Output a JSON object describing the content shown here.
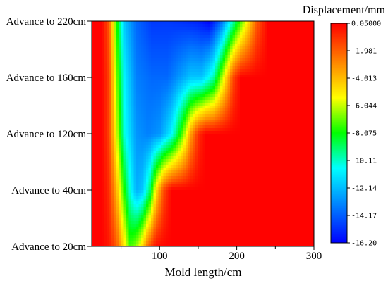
{
  "chart_data": {
    "type": "heatmap",
    "title": "",
    "xlabel": "Mold length/cm",
    "ylabel": "",
    "x_ticks": [
      100,
      200,
      300
    ],
    "xlim": [
      12,
      300
    ],
    "y_categories": [
      "Advance to 20cm",
      "Advance to 40cm",
      "Advance to 120cm",
      "Advance to 160cm",
      "Advance to 220cm"
    ],
    "colorbar": {
      "title": "Displacement/mm",
      "tick_labels": [
        "0.05000",
        "-1.981",
        "-4.013",
        "-6.044",
        "-8.075",
        "-10.11",
        "-12.14",
        "-14.17",
        "-16.20"
      ],
      "range": [
        -16.2,
        0.05
      ],
      "colormap": [
        "#0000ff",
        "#0080ff",
        "#00ffff",
        "#00ff00",
        "#ffff00",
        "#ff8000",
        "#ff0000"
      ]
    },
    "rows": [
      {
        "y": "Advance to 20cm",
        "x": [
          12,
          25,
          35,
          45,
          55,
          62,
          70,
          78,
          85,
          95,
          110,
          300
        ],
        "values": [
          0,
          0,
          -0.5,
          -2,
          -5,
          -7.5,
          -6.5,
          -4.5,
          -2,
          -0.2,
          0,
          0
        ]
      },
      {
        "y": "Advance to 40cm",
        "x": [
          12,
          25,
          35,
          45,
          55,
          62,
          70,
          78,
          88,
          95,
          105,
          115,
          300
        ],
        "values": [
          0,
          0,
          -1,
          -4,
          -8,
          -10.5,
          -12.5,
          -12,
          -9,
          -5,
          -1.5,
          0,
          0
        ]
      },
      {
        "y": "Advance to 120cm",
        "x": [
          12,
          25,
          35,
          45,
          55,
          70,
          85,
          100,
          115,
          130,
          140,
          150,
          160,
          170,
          300
        ],
        "values": [
          0,
          0,
          -1.5,
          -6,
          -10.5,
          -13,
          -13.5,
          -13,
          -11,
          -7,
          -3.5,
          -1,
          0,
          0,
          0
        ]
      },
      {
        "y": "Advance to 160cm",
        "x": [
          12,
          25,
          35,
          45,
          55,
          70,
          90,
          110,
          125,
          140,
          155,
          170,
          185,
          195,
          205,
          300
        ],
        "values": [
          0,
          0,
          -1.5,
          -7,
          -11,
          -13.5,
          -14,
          -14,
          -13,
          -12,
          -12,
          -10,
          -5,
          -1.5,
          0,
          0
        ]
      },
      {
        "y": "Advance to 220cm",
        "x": [
          12,
          25,
          35,
          45,
          55,
          70,
          90,
          110,
          130,
          150,
          165,
          180,
          195,
          210,
          225,
          240,
          300
        ],
        "values": [
          0,
          0,
          -2,
          -8,
          -12,
          -14,
          -15,
          -15,
          -15.2,
          -15.5,
          -16.2,
          -14,
          -10,
          -6,
          -2,
          0,
          0
        ]
      }
    ]
  }
}
